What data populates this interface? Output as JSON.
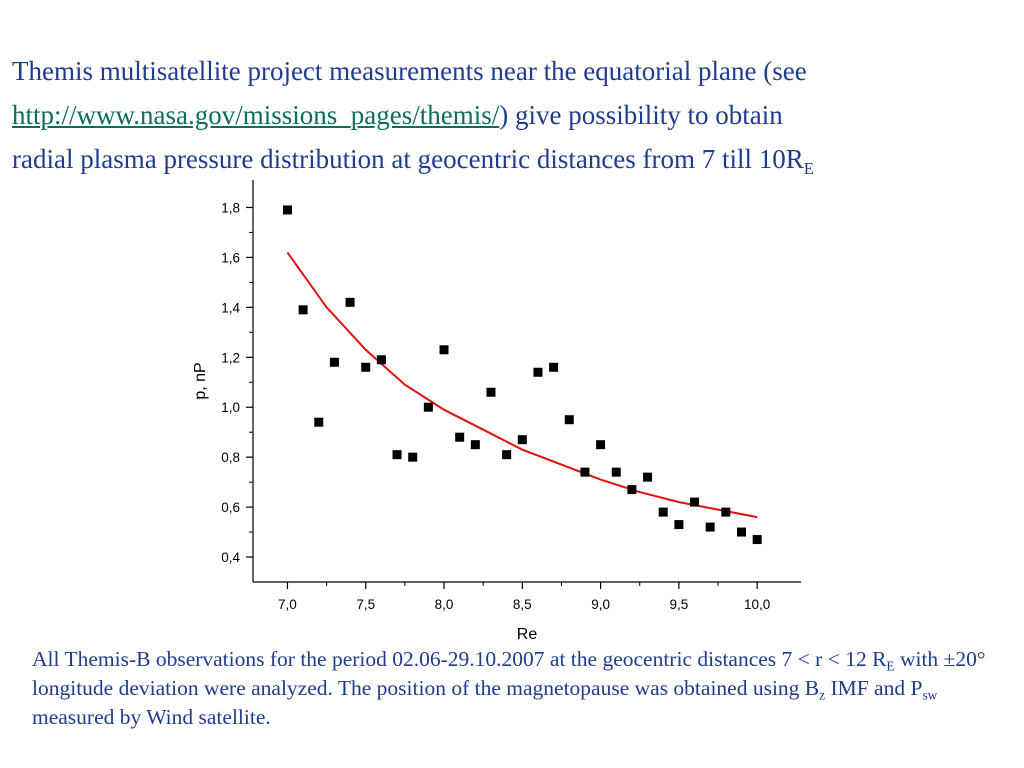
{
  "intro": {
    "part1": "Themis multisatellite project measurements near the equatorial plane (see ",
    "link": "http://www.nasa.gov/missions_pages/themis/",
    "part2": ") give possibility to obtain",
    "line3": "radial plasma pressure distribution at geocentric distances from 7 till 10R",
    "line3_sub": "E"
  },
  "caption": {
    "t1": "All Themis-B observations for the period 02.06-29.10.2007 at the geocentric distances 7 < r < 12 R",
    "t1_sub": "E",
    "t2": " with ±20° longitude deviation were analyzed. The position of the magnetopause was obtained using B",
    "t2_sub": "z",
    "t3": " IMF and P",
    "t3_sub": "sw",
    "t4": " measured by Wind satellite."
  },
  "chart_data": {
    "type": "scatter",
    "xlabel": "Re",
    "ylabel": "p, nP",
    "xlim": [
      6.78,
      10.28
    ],
    "ylim": [
      0.3,
      1.91
    ],
    "xticks": [
      7.0,
      7.5,
      8.0,
      8.5,
      9.0,
      9.5,
      10.0
    ],
    "xtick_labels": [
      "7,0",
      "7,5",
      "8,0",
      "8,5",
      "9,0",
      "9,5",
      "10,0"
    ],
    "yticks": [
      0.4,
      0.6,
      0.8,
      1.0,
      1.2,
      1.4,
      1.6,
      1.8
    ],
    "ytick_labels": [
      "0,4",
      "0,6",
      "0,8",
      "1,0",
      "1,2",
      "1,4",
      "1,6",
      "1,8"
    ],
    "marker_color": "#000000",
    "fit_color": "#e01010",
    "points": {
      "x": [
        7.0,
        7.1,
        7.2,
        7.3,
        7.4,
        7.5,
        7.6,
        7.7,
        7.8,
        7.9,
        8.0,
        8.1,
        8.2,
        8.3,
        8.4,
        8.5,
        8.6,
        8.7,
        8.8,
        8.9,
        9.0,
        9.1,
        9.2,
        9.3,
        9.4,
        9.5,
        9.6,
        9.7,
        9.8,
        9.9,
        10.0
      ],
      "y": [
        1.79,
        1.39,
        0.94,
        1.18,
        1.42,
        1.16,
        1.19,
        0.81,
        0.8,
        1.0,
        1.23,
        0.88,
        0.85,
        1.06,
        0.81,
        0.87,
        1.14,
        1.16,
        0.95,
        0.74,
        0.85,
        0.74,
        0.67,
        0.72,
        0.58,
        0.53,
        0.62,
        0.52,
        0.58,
        0.5,
        0.47
      ]
    },
    "fit": {
      "x": [
        7.0,
        7.25,
        7.5,
        7.75,
        8.0,
        8.25,
        8.5,
        8.75,
        9.0,
        9.25,
        9.5,
        9.75,
        10.0
      ],
      "y": [
        1.62,
        1.4,
        1.23,
        1.09,
        0.99,
        0.91,
        0.83,
        0.77,
        0.71,
        0.66,
        0.62,
        0.59,
        0.56
      ]
    }
  }
}
